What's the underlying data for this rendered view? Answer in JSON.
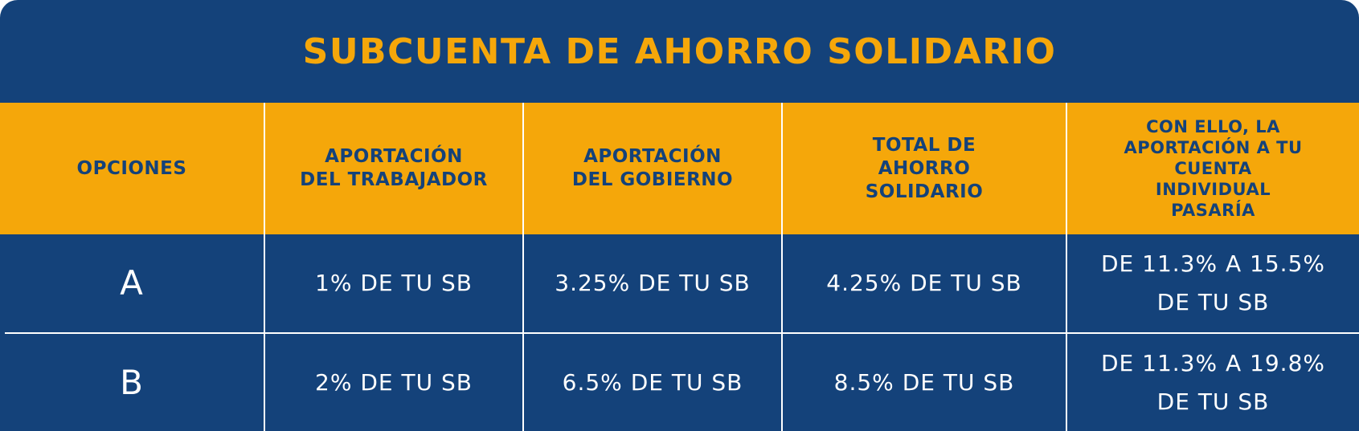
{
  "title": "SUBCUENTA DE AHORRO SOLIDARIO",
  "colors": {
    "navy": "#14427a",
    "gold": "#f5a70a",
    "white": "#ffffff"
  },
  "headers": [
    "OPCIONES",
    "APORTACIÓN\nDEL TRABAJADOR",
    "APORTACIÓN\nDEL GOBIERNO",
    "TOTAL DE\nAHORRO\nSOLIDARIO",
    "CON ELLO, LA\nAPORTACIÓN A TU\nCUENTA\nINDIVIDUAL\nPASARÍA"
  ],
  "rows": [
    {
      "option": "A",
      "worker": "1% DE TU SB",
      "government": "3.25% DE TU SB",
      "total": "4.25% DE TU SB",
      "result": "DE 11.3% A 15.5%\nDE TU SB"
    },
    {
      "option": "B",
      "worker": "2% DE TU SB",
      "government": "6.5% DE TU SB",
      "total": "8.5% DE TU SB",
      "result": "DE 11.3% A 19.8%\nDE TU SB"
    }
  ]
}
